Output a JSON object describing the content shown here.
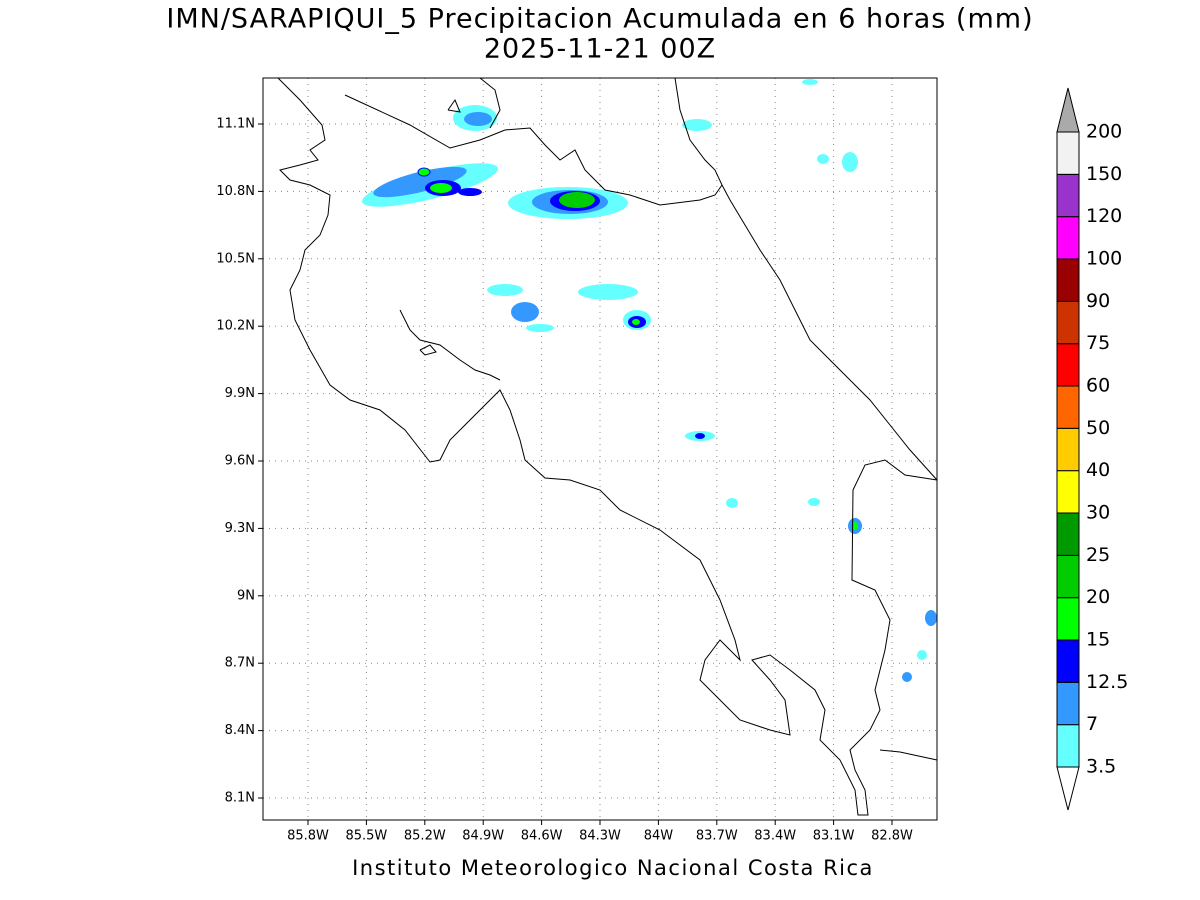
{
  "title": "IMN/SARAPIQUI_5 Precipitacion Acumulada en 6 horas (mm)",
  "subtitle": "2025-11-21 00Z",
  "footer": "Instituto Meteorologico Nacional Costa Rica",
  "map": {
    "lon_labels": [
      "85.8W",
      "85.5W",
      "85.2W",
      "84.9W",
      "84.6W",
      "84.3W",
      "84W",
      "83.7W",
      "83.4W",
      "83.1W",
      "82.8W"
    ],
    "lat_labels": [
      "11.1N",
      "10.8N",
      "10.5N",
      "10.2N",
      "9.9N",
      "9.6N",
      "9.3N",
      "9N",
      "8.7N",
      "8.4N",
      "8.1N"
    ]
  },
  "colorbar": {
    "levels": [
      3.5,
      7,
      12.5,
      15,
      20,
      25,
      30,
      40,
      50,
      60,
      75,
      90,
      100,
      120,
      150,
      200
    ],
    "colors": [
      "#66ffff",
      "#3399ff",
      "#0000ff",
      "#00ff00",
      "#00cc00",
      "#009900",
      "#ffff00",
      "#ffcc00",
      "#ff6600",
      "#ff0000",
      "#cc3300",
      "#990000",
      "#ff00ff",
      "#9933cc",
      "#f2f2f2"
    ],
    "under_color": "#ffffff",
    "over_color": "#aaaaaa"
  }
}
